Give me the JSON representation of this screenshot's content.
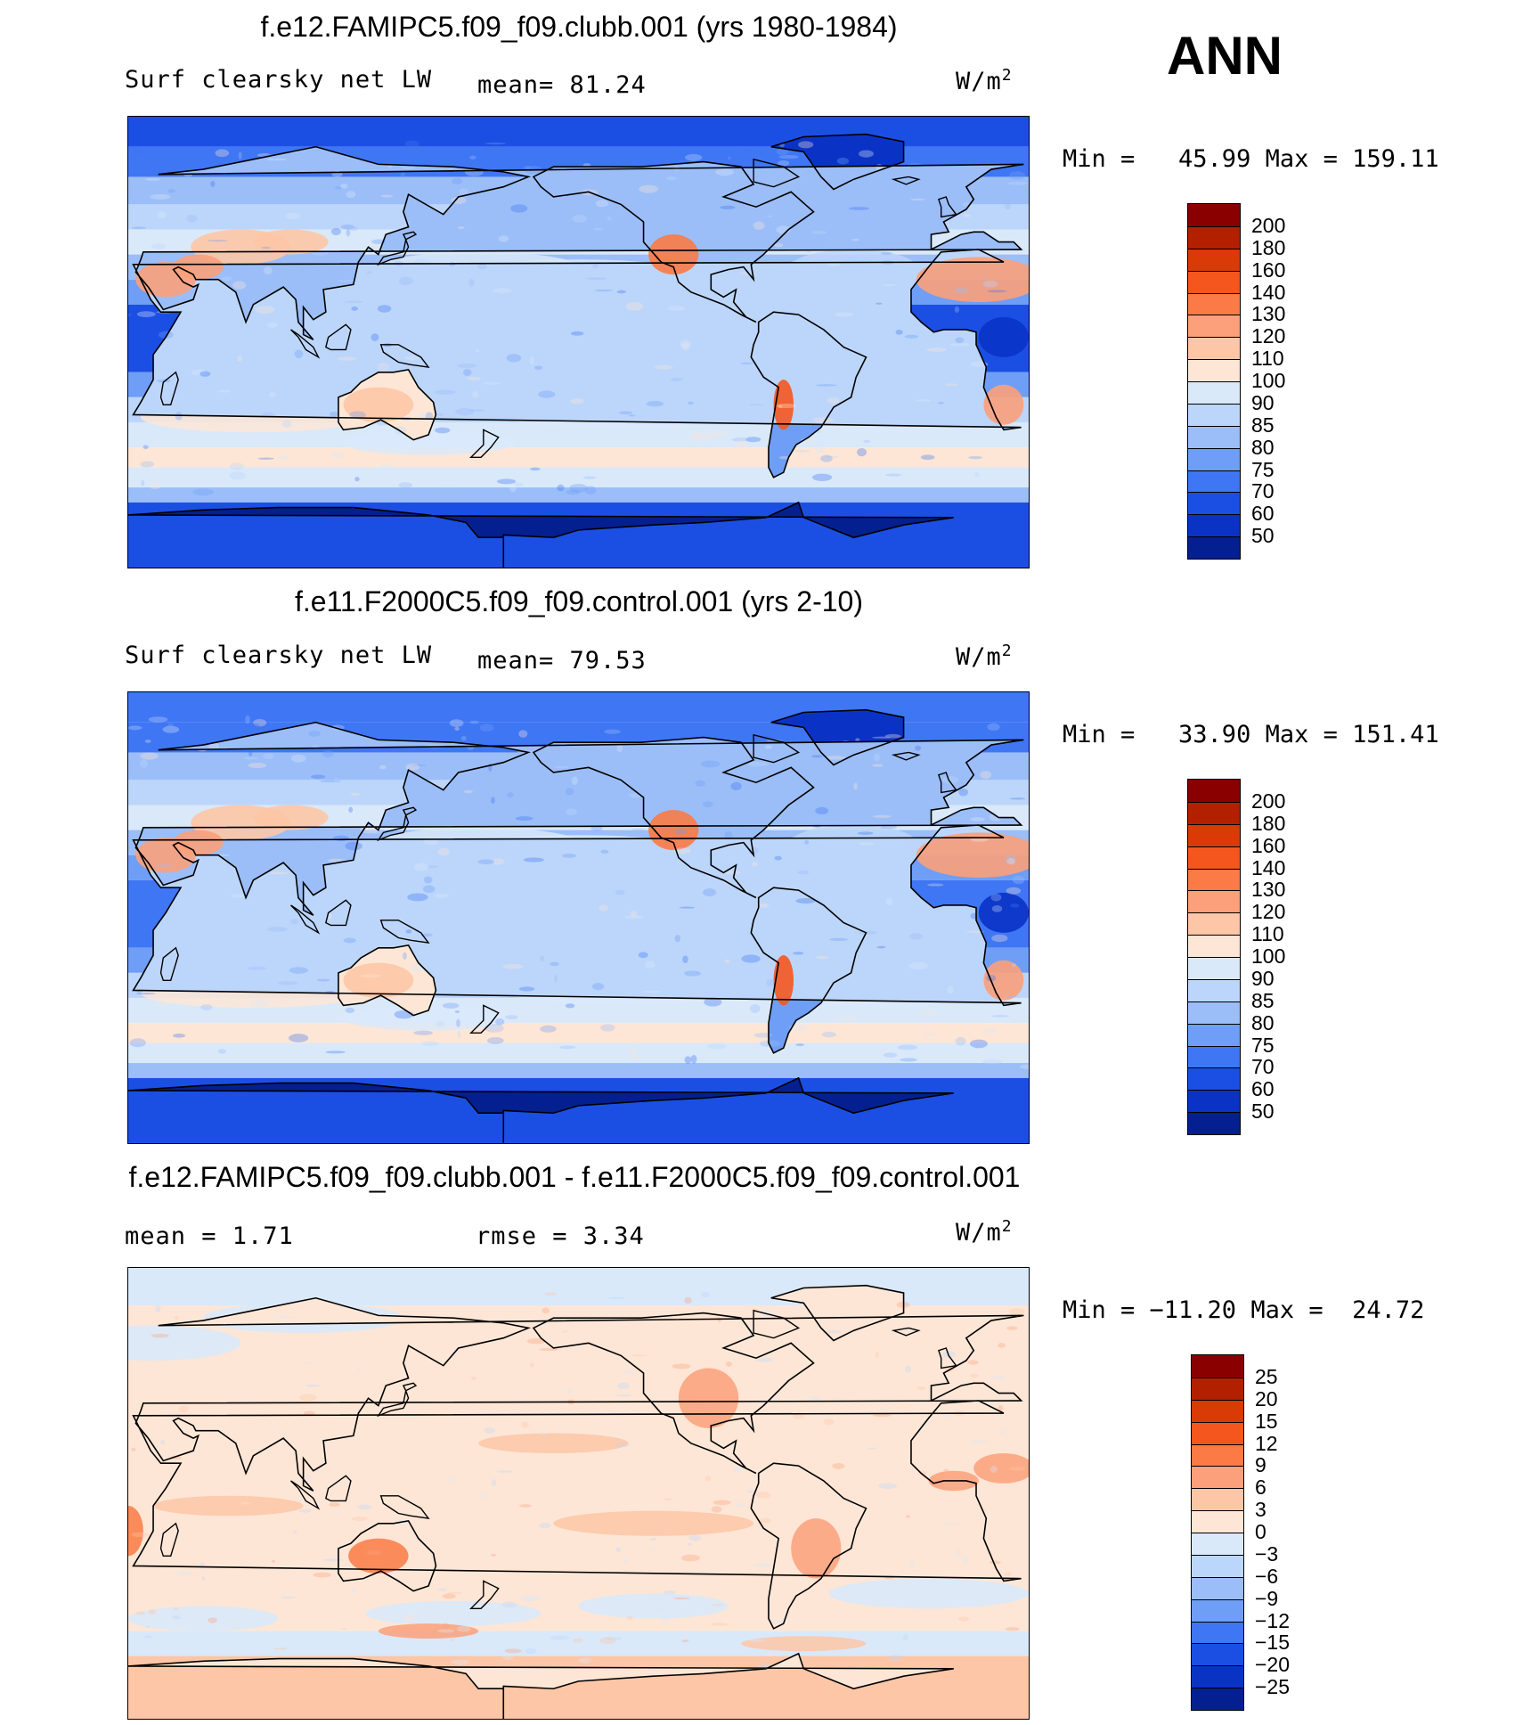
{
  "season": "ANN",
  "panels": [
    {
      "title": "f.e12.FAMIPC5.f09_f09.clubb.001 (yrs 1980-1984)",
      "variable": "Surf clearsky net LW",
      "stat1": "mean=  81.24",
      "stat2": "",
      "units": "W/m",
      "units_sup": "2",
      "minmax": "Min =   45.99 Max = 159.11",
      "kind": "abs"
    },
    {
      "title": "f.e11.F2000C5.f09_f09.control.001 (yrs 2-10)",
      "variable": "Surf clearsky net LW",
      "stat1": "mean=  79.53",
      "stat2": "",
      "units": "W/m",
      "units_sup": "2",
      "minmax": "Min =   33.90 Max = 151.41",
      "kind": "abs"
    },
    {
      "title": "f.e12.FAMIPC5.f09_f09.clubb.001 - f.e11.F2000C5.f09_f09.control.001",
      "variable": "mean =    1.71",
      "stat1": "",
      "stat2": "rmse =    3.34",
      "units": "W/m",
      "units_sup": "2",
      "minmax": "Min = −11.20 Max =  24.72",
      "kind": "diff"
    }
  ],
  "colorbars": {
    "abs": {
      "levels": [
        "200",
        "180",
        "160",
        "140",
        "130",
        "120",
        "110",
        "100",
        "90",
        "85",
        "80",
        "75",
        "70",
        "60",
        "50"
      ],
      "colors": [
        "#8a0000",
        "#b32000",
        "#d93a06",
        "#f5561e",
        "#fb7a45",
        "#fba07a",
        "#fdc6a6",
        "#fde6d6",
        "#d9e9fa",
        "#bcd6fb",
        "#9bbef9",
        "#6f9ef6",
        "#3f76f4",
        "#1b4fe4",
        "#0a33c6",
        "#041f8f"
      ]
    },
    "diff": {
      "levels": [
        "25",
        "20",
        "15",
        "12",
        "9",
        "6",
        "3",
        "0",
        "−3",
        "−6",
        "−9",
        "−12",
        "−15",
        "−20",
        "−25"
      ],
      "colors": [
        "#8a0000",
        "#b32000",
        "#d93a06",
        "#f5561e",
        "#fb7a45",
        "#fba07a",
        "#fdc6a6",
        "#fde6d6",
        "#d9e9fa",
        "#bcd6fb",
        "#9bbef9",
        "#6f9ef6",
        "#3f76f4",
        "#1b4fe4",
        "#0a33c6",
        "#041f8f"
      ]
    }
  },
  "chart_data": [
    {
      "type": "heatmap",
      "title": "f.e12.FAMIPC5.f09_f09.clubb.001 (yrs 1980-1984)",
      "subtitle": "Surf clearsky net LW",
      "mean": 81.24,
      "min": 45.99,
      "max": 159.11,
      "units": "W/m2",
      "contour_levels": [
        50,
        60,
        70,
        75,
        80,
        85,
        90,
        100,
        110,
        120,
        130,
        140,
        160,
        180,
        200
      ]
    },
    {
      "type": "heatmap",
      "title": "f.e11.F2000C5.f09_f09.control.001 (yrs 2-10)",
      "subtitle": "Surf clearsky net LW",
      "mean": 79.53,
      "min": 33.9,
      "max": 151.41,
      "units": "W/m2",
      "contour_levels": [
        50,
        60,
        70,
        75,
        80,
        85,
        90,
        100,
        110,
        120,
        130,
        140,
        160,
        180,
        200
      ]
    },
    {
      "type": "heatmap",
      "title": "f.e12.FAMIPC5.f09_f09.clubb.001 - f.e11.F2000C5.f09_f09.control.001",
      "mean": 1.71,
      "rmse": 3.34,
      "min": -11.2,
      "max": 24.72,
      "units": "W/m2",
      "contour_levels": [
        -25,
        -20,
        -15,
        -12,
        -9,
        -6,
        -3,
        0,
        3,
        6,
        9,
        12,
        15,
        20,
        25
      ]
    }
  ]
}
